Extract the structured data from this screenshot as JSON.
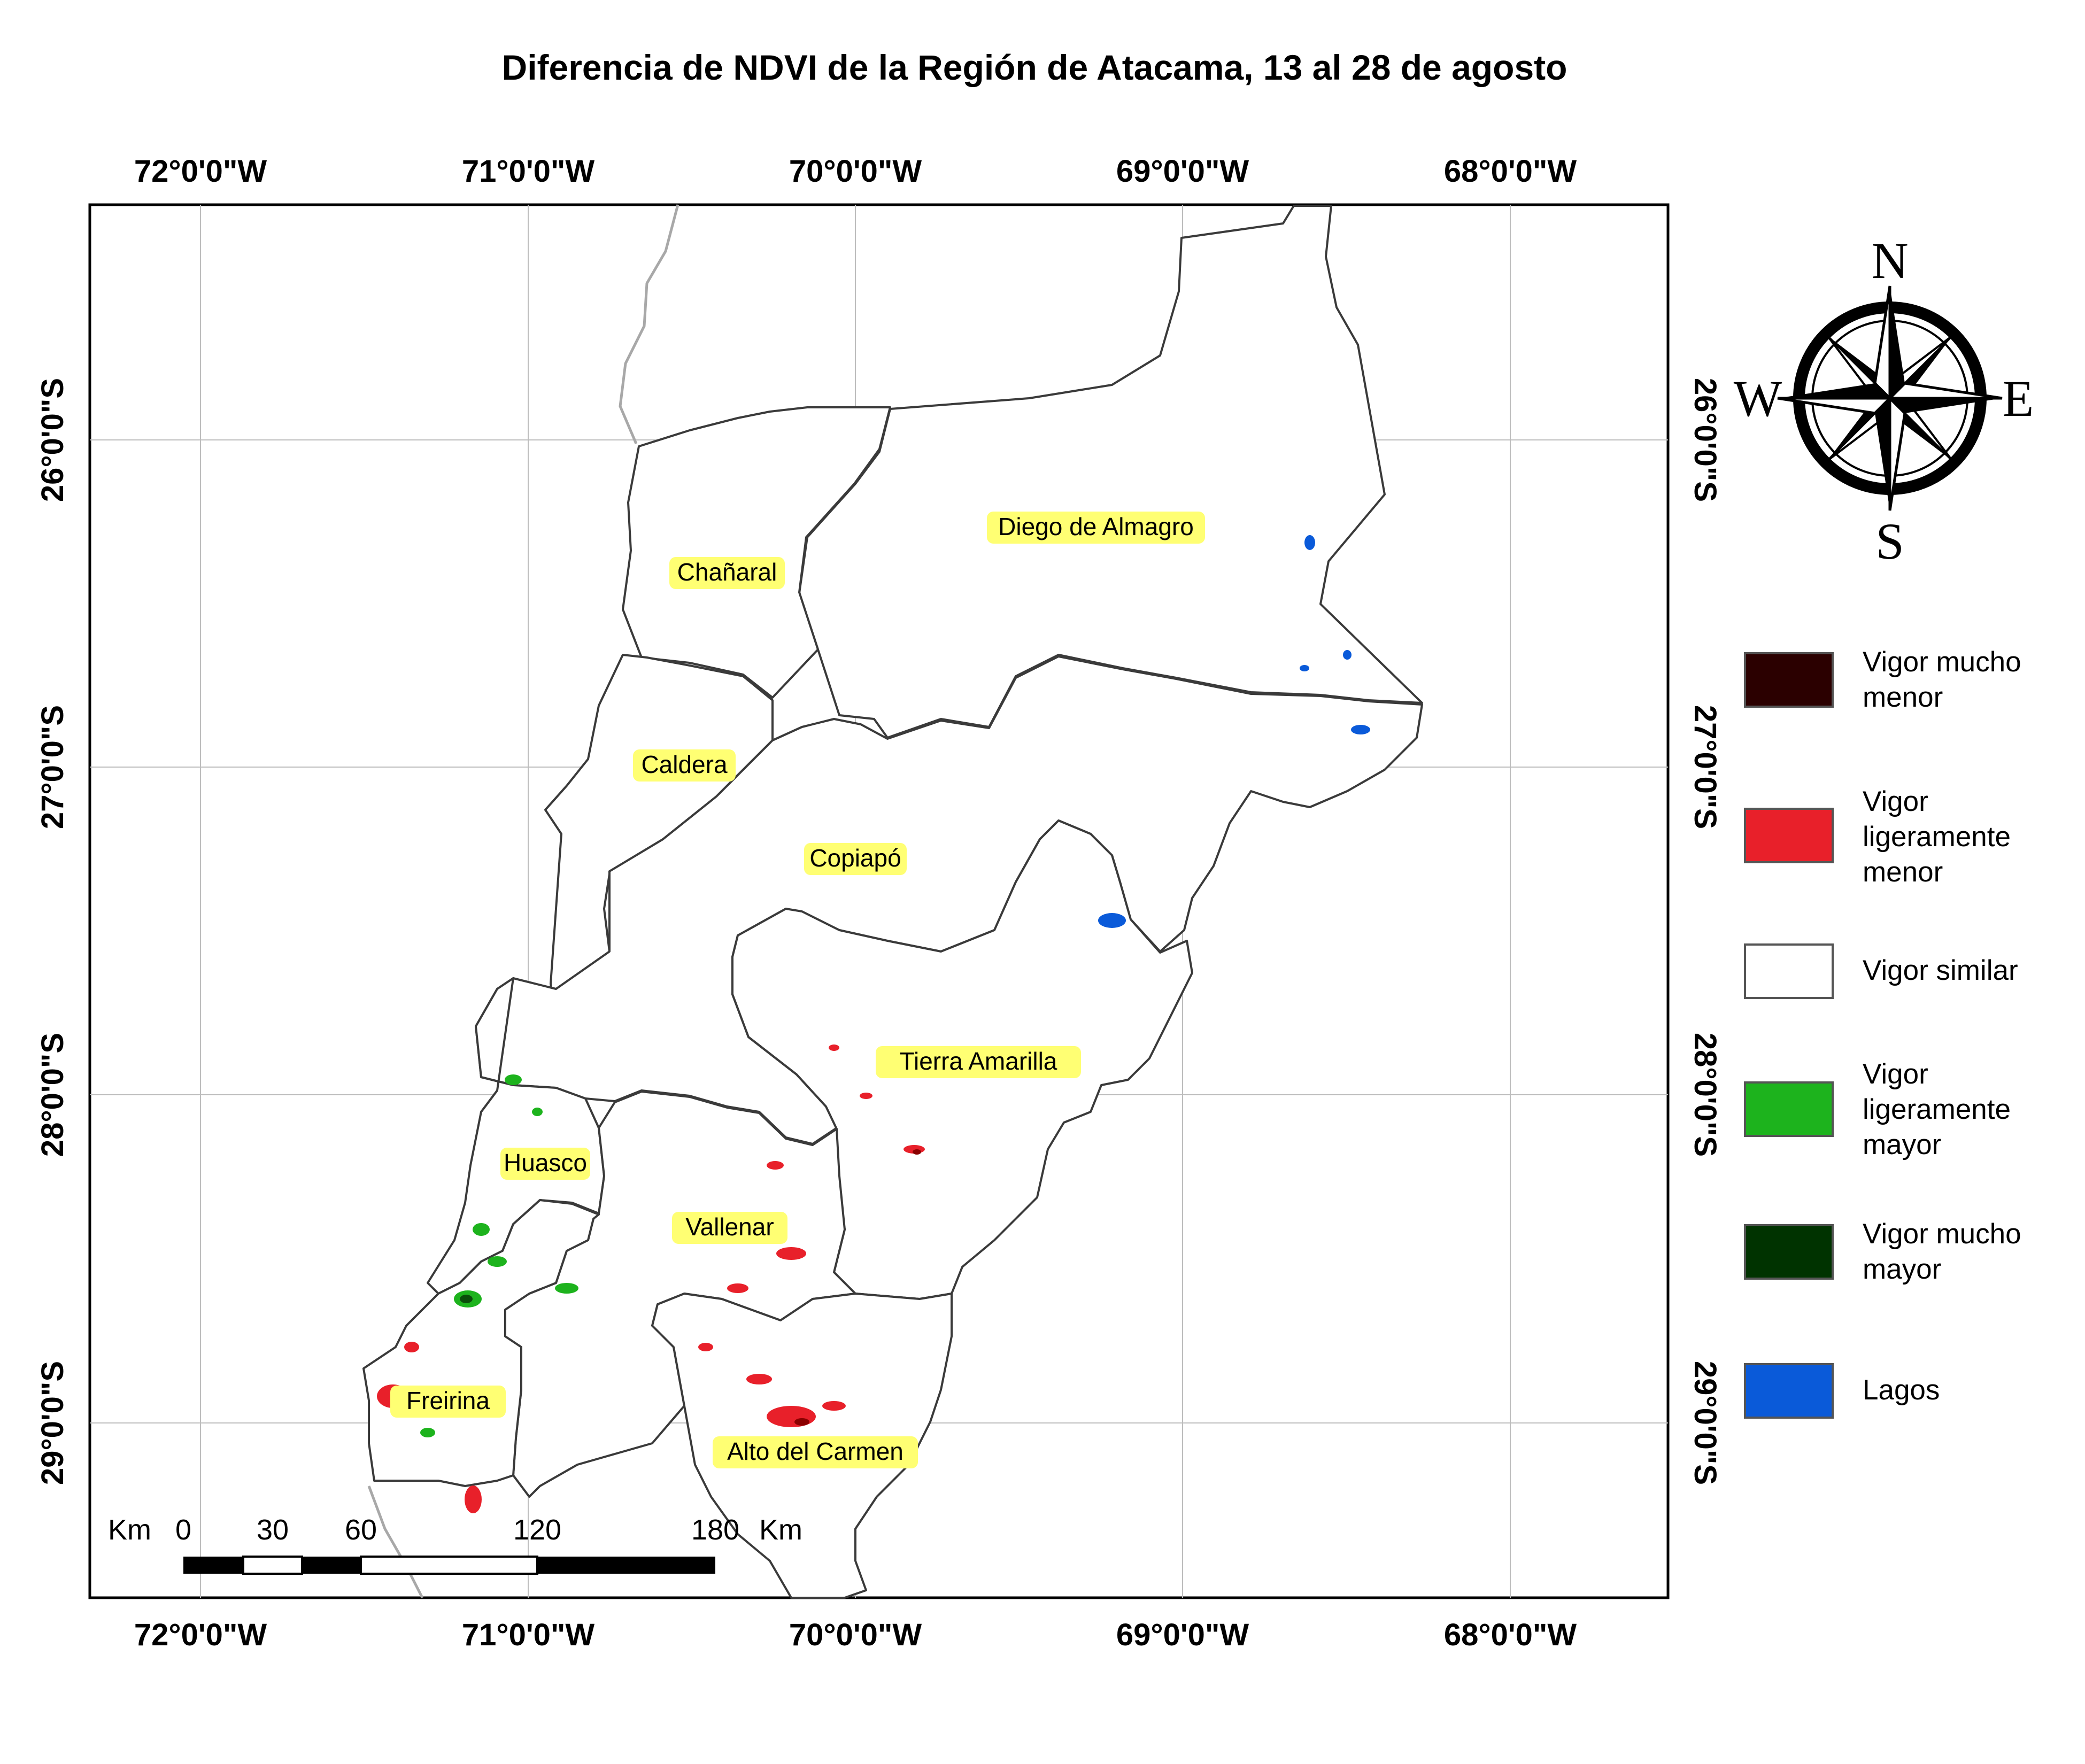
{
  "title": "Diferencia de NDVI de la Región de Atacama, 13 al 28 de agosto",
  "lon_ticks": [
    "72°0'0\"W",
    "71°0'0\"W",
    "70°0'0\"W",
    "69°0'0\"W",
    "68°0'0\"W"
  ],
  "lat_ticks": [
    "26°0'0\"S",
    "27°0'0\"S",
    "28°0'0\"S",
    "29°0'0\"S"
  ],
  "places": [
    "Diego de Almagro",
    "Chañaral",
    "Caldera",
    "Copiapó",
    "Tierra Amarilla",
    "Huasco",
    "Vallenar",
    "Freirina",
    "Alto del Carmen"
  ],
  "compass": {
    "n": "N",
    "s": "S",
    "e": "E",
    "w": "W"
  },
  "scale_bar": {
    "unit": "Km",
    "ticks": [
      "0",
      "30",
      "60",
      "120",
      "180"
    ],
    "unit_end": "Km"
  },
  "legend": [
    {
      "label": "Vigor mucho menor",
      "color": "#2b0000"
    },
    {
      "label": "Vigor ligeramente menor",
      "color": "#e8202a"
    },
    {
      "label": "Vigor similar",
      "color": "#ffffff"
    },
    {
      "label": "Vigor ligeramente mayor",
      "color": "#1db31d"
    },
    {
      "label": "Vigor mucho mayor",
      "color": "#003300"
    },
    {
      "label": "Lagos",
      "color": "#0a5ad9"
    }
  ]
}
